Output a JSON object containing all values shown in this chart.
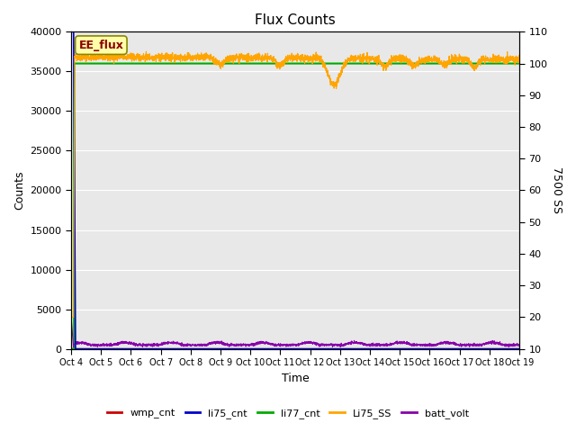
{
  "title": "Flux Counts",
  "xlabel": "Time",
  "ylabel_left": "Counts",
  "ylabel_right": "7500 SS",
  "ylim_left": [
    0,
    40000
  ],
  "ylim_right": [
    10,
    110
  ],
  "yticks_left": [
    0,
    5000,
    10000,
    15000,
    20000,
    25000,
    30000,
    35000,
    40000
  ],
  "yticks_right": [
    10,
    20,
    30,
    40,
    50,
    60,
    70,
    80,
    90,
    100,
    110
  ],
  "xtick_labels": [
    "Oct 4",
    "Oct 5",
    "Oct 6",
    "Oct 7",
    "Oct 8",
    "Oct 9",
    "Oct 10",
    "Oct 11",
    "Oct 12",
    "Oct 13",
    "Oct 14",
    "Oct 15",
    "Oct 16",
    "Oct 17",
    "Oct 18",
    "Oct 19"
  ],
  "annotation_text": "EE_flux",
  "annotation_color": "#8B0000",
  "annotation_bg": "#FFFFAA",
  "annotation_edge": "#888800",
  "bg_color": "#E8E8E8",
  "fig_bg_color": "#FFFFFF",
  "legend_entries": [
    {
      "label": "wmp_cnt",
      "color": "#CC0000"
    },
    {
      "label": "li75_cnt",
      "color": "#0000CC"
    },
    {
      "label": "li77_cnt",
      "color": "#00AA00"
    },
    {
      "label": "Li75_SS",
      "color": "#FFA500"
    },
    {
      "label": "batt_volt",
      "color": "#8800AA"
    }
  ]
}
